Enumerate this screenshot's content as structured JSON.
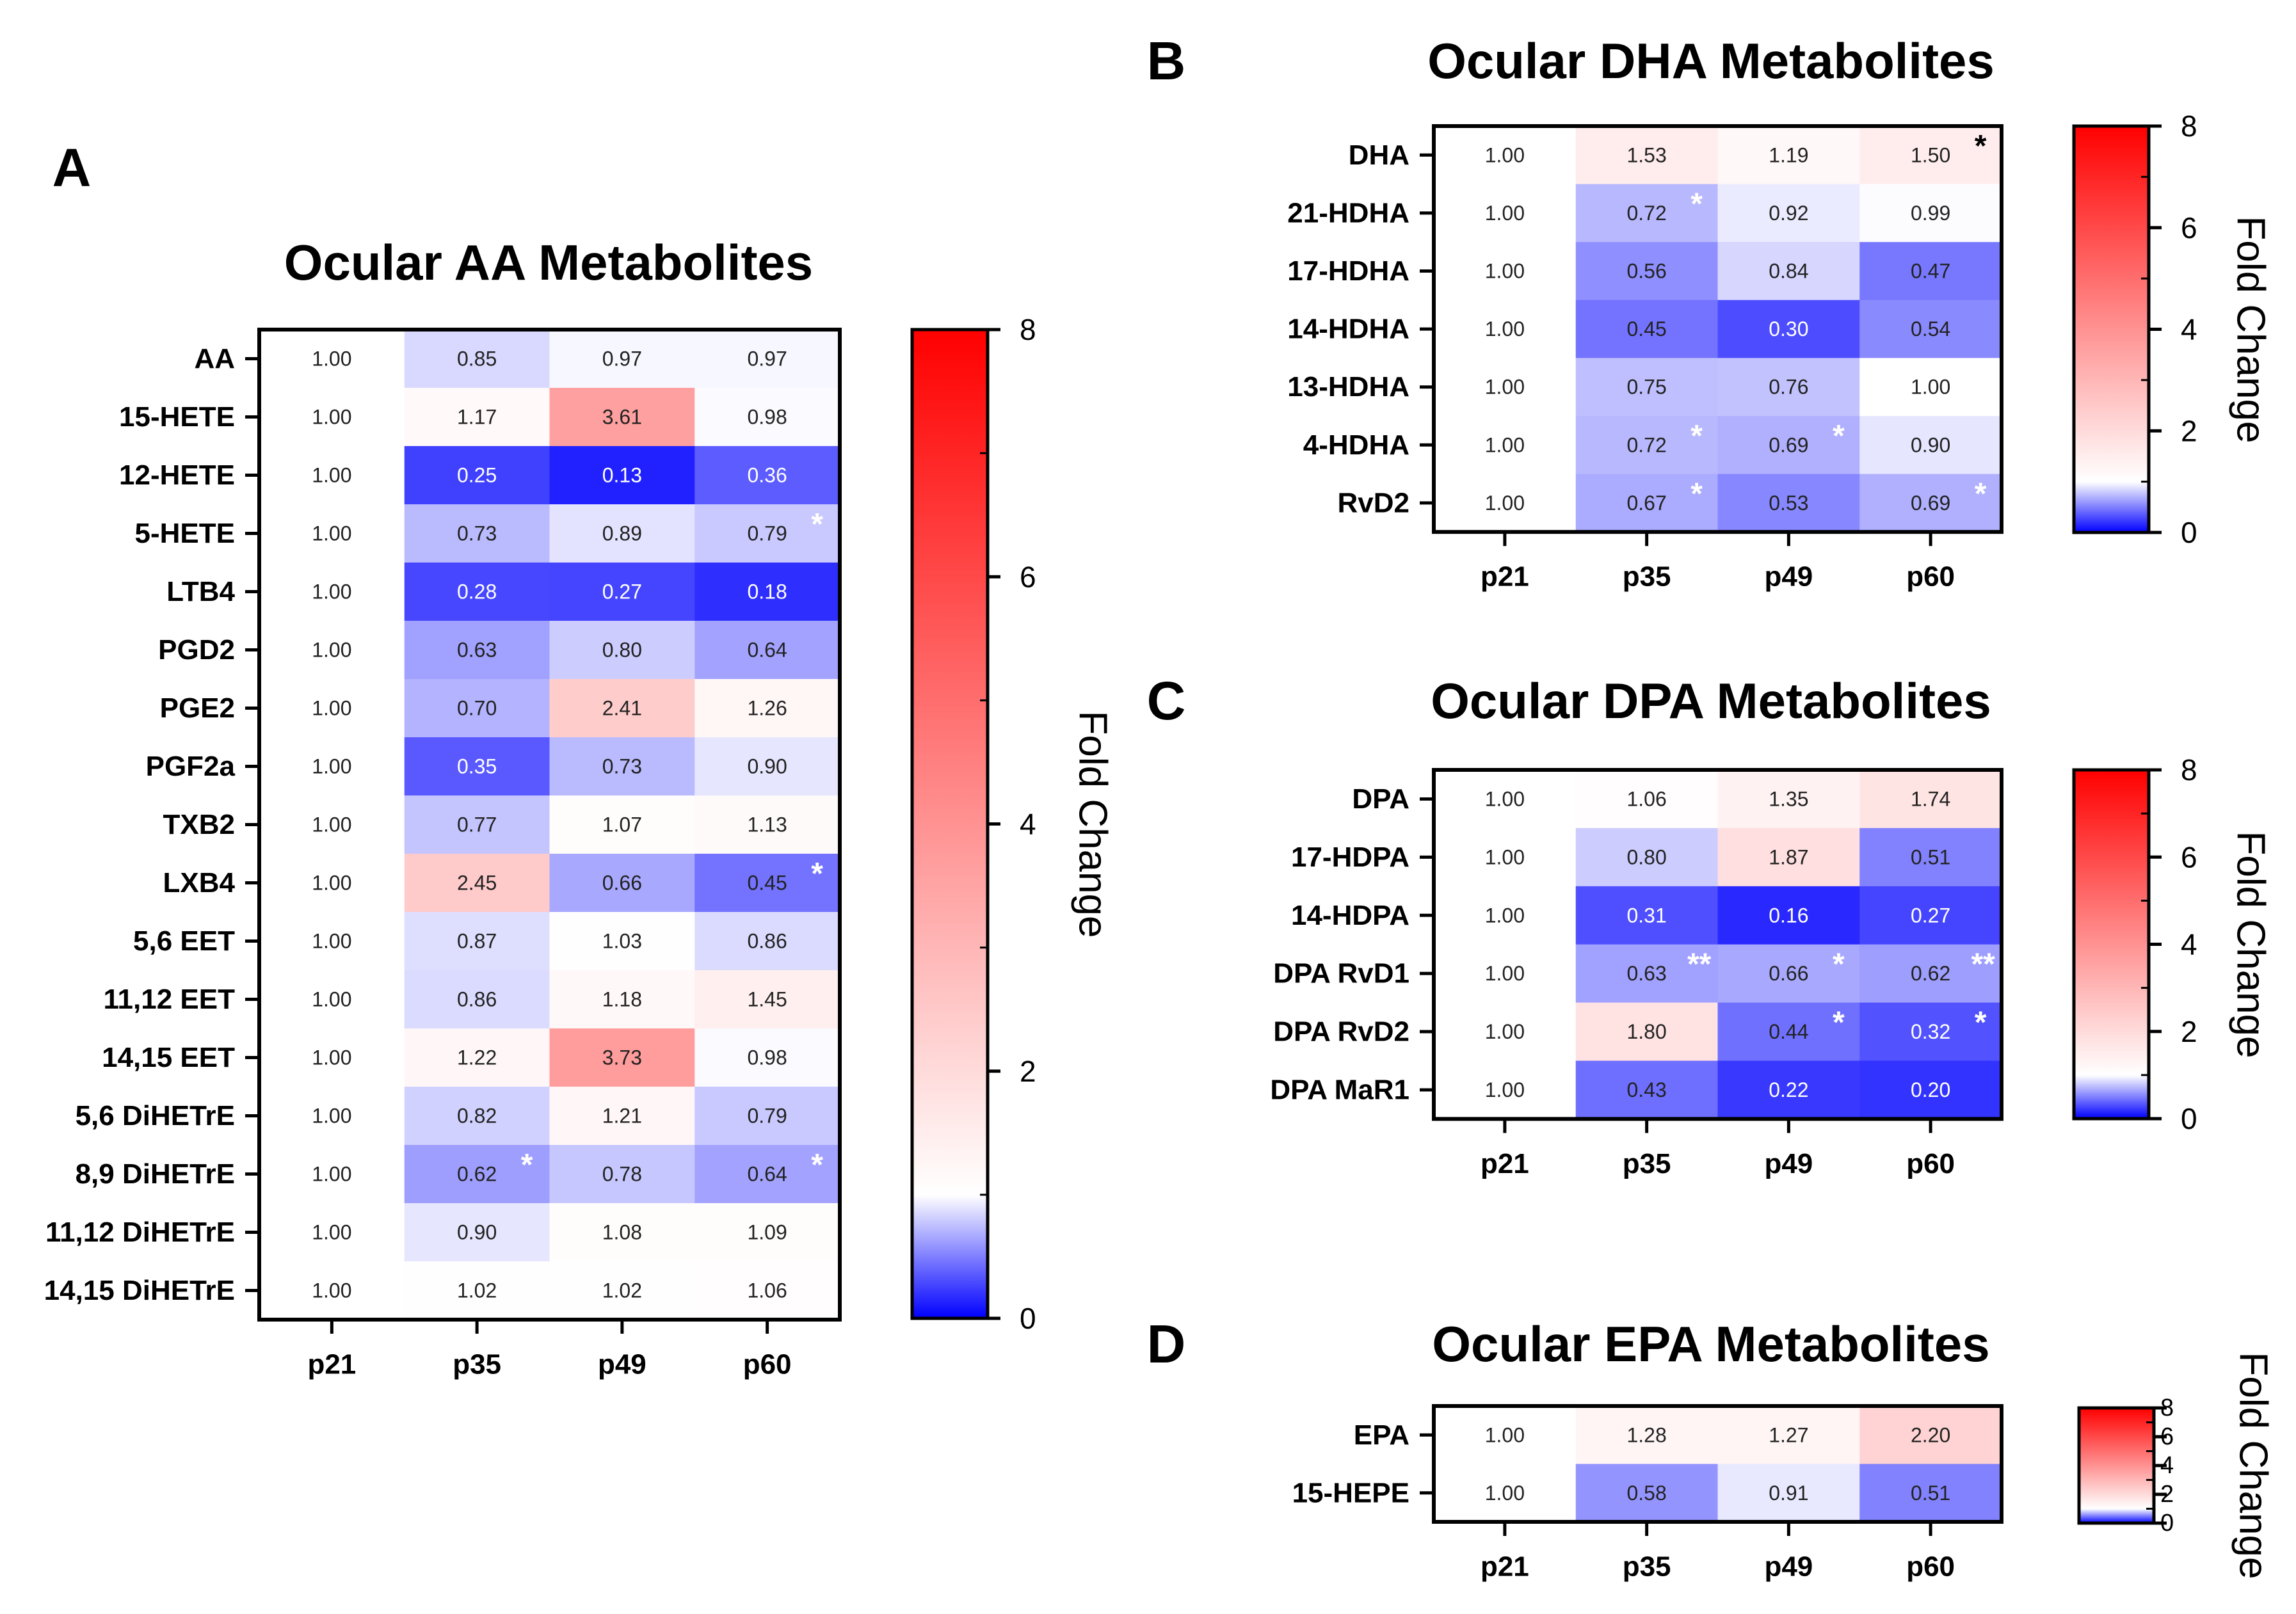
{
  "colorbar_label": "Fold Change",
  "colors": {
    "low": "#0000ff",
    "mid": "#ffffff",
    "high": "#ff0000"
  },
  "chart_data": [
    {
      "id": "A",
      "type": "heatmap",
      "panel_letter": "A",
      "title": "Ocular AA Metabolites",
      "columns": [
        "p21",
        "p35",
        "p49",
        "p60"
      ],
      "rows": [
        {
          "label": "AA",
          "values": [
            "1.00",
            "0.85",
            "0.97",
            "0.97"
          ],
          "stars": [
            "",
            "",
            "",
            ""
          ]
        },
        {
          "label": "15-HETE",
          "values": [
            "1.00",
            "1.17",
            "3.61",
            "0.98"
          ],
          "stars": [
            "",
            "",
            "",
            ""
          ]
        },
        {
          "label": "12-HETE",
          "values": [
            "1.00",
            "0.25",
            "0.13",
            "0.36"
          ],
          "stars": [
            "",
            "",
            "",
            ""
          ]
        },
        {
          "label": "5-HETE",
          "values": [
            "1.00",
            "0.73",
            "0.89",
            "0.79"
          ],
          "stars": [
            "",
            "",
            "",
            "*"
          ]
        },
        {
          "label": "LTB4",
          "values": [
            "1.00",
            "0.28",
            "0.27",
            "0.18"
          ],
          "stars": [
            "",
            "",
            "",
            ""
          ]
        },
        {
          "label": "PGD2",
          "values": [
            "1.00",
            "0.63",
            "0.80",
            "0.64"
          ],
          "stars": [
            "",
            "",
            "",
            ""
          ]
        },
        {
          "label": "PGE2",
          "values": [
            "1.00",
            "0.70",
            "2.41",
            "1.26"
          ],
          "stars": [
            "",
            "",
            "",
            ""
          ]
        },
        {
          "label": "PGF2a",
          "values": [
            "1.00",
            "0.35",
            "0.73",
            "0.90"
          ],
          "stars": [
            "",
            "",
            "",
            ""
          ]
        },
        {
          "label": "TXB2",
          "values": [
            "1.00",
            "0.77",
            "1.07",
            "1.13"
          ],
          "stars": [
            "",
            "",
            "",
            ""
          ]
        },
        {
          "label": "LXB4",
          "values": [
            "1.00",
            "2.45",
            "0.66",
            "0.45"
          ],
          "stars": [
            "",
            "",
            "",
            "*"
          ]
        },
        {
          "label": "5,6 EET",
          "values": [
            "1.00",
            "0.87",
            "1.03",
            "0.86"
          ],
          "stars": [
            "",
            "",
            "",
            ""
          ]
        },
        {
          "label": "11,12 EET",
          "values": [
            "1.00",
            "0.86",
            "1.18",
            "1.45"
          ],
          "stars": [
            "",
            "",
            "",
            ""
          ]
        },
        {
          "label": "14,15 EET",
          "values": [
            "1.00",
            "1.22",
            "3.73",
            "0.98"
          ],
          "stars": [
            "",
            "",
            "",
            ""
          ]
        },
        {
          "label": "5,6 DiHETrE",
          "values": [
            "1.00",
            "0.82",
            "1.21",
            "0.79"
          ],
          "stars": [
            "",
            "",
            "",
            ""
          ]
        },
        {
          "label": "8,9 DiHETrE",
          "values": [
            "1.00",
            "0.62",
            "0.78",
            "0.64"
          ],
          "stars": [
            "",
            "*",
            "",
            "*"
          ]
        },
        {
          "label": "11,12 DiHETrE",
          "values": [
            "1.00",
            "0.90",
            "1.08",
            "1.09"
          ],
          "stars": [
            "",
            "",
            "",
            ""
          ]
        },
        {
          "label": "14,15 DiHETrE",
          "values": [
            "1.00",
            "1.02",
            "1.02",
            "1.06"
          ],
          "stars": [
            "",
            "",
            "",
            ""
          ]
        }
      ],
      "colorbar": {
        "range": [
          0,
          8
        ],
        "ticks": [
          "0",
          "2",
          "4",
          "6",
          "8"
        ],
        "label": "Fold Change"
      }
    },
    {
      "id": "B",
      "type": "heatmap",
      "panel_letter": "B",
      "title": "Ocular DHA Metabolites",
      "columns": [
        "p21",
        "p35",
        "p49",
        "p60"
      ],
      "rows": [
        {
          "label": "DHA",
          "values": [
            "1.00",
            "1.53",
            "1.19",
            "1.50"
          ],
          "stars": [
            "",
            "",
            "",
            "*"
          ]
        },
        {
          "label": "21-HDHA",
          "values": [
            "1.00",
            "0.72",
            "0.92",
            "0.99"
          ],
          "stars": [
            "",
            "*",
            "",
            ""
          ]
        },
        {
          "label": "17-HDHA",
          "values": [
            "1.00",
            "0.56",
            "0.84",
            "0.47"
          ],
          "stars": [
            "",
            "",
            "",
            ""
          ]
        },
        {
          "label": "14-HDHA",
          "values": [
            "1.00",
            "0.45",
            "0.30",
            "0.54"
          ],
          "stars": [
            "",
            "",
            "",
            ""
          ]
        },
        {
          "label": "13-HDHA",
          "values": [
            "1.00",
            "0.75",
            "0.76",
            "1.00"
          ],
          "stars": [
            "",
            "",
            "",
            ""
          ]
        },
        {
          "label": "4-HDHA",
          "values": [
            "1.00",
            "0.72",
            "0.69",
            "0.90"
          ],
          "stars": [
            "",
            "*",
            "*",
            ""
          ]
        },
        {
          "label": "RvD2",
          "values": [
            "1.00",
            "0.67",
            "0.53",
            "0.69"
          ],
          "stars": [
            "",
            "*",
            "",
            "*"
          ]
        }
      ],
      "colorbar": {
        "range": [
          0,
          8
        ],
        "ticks": [
          "0",
          "2",
          "4",
          "6",
          "8"
        ],
        "label": "Fold Change"
      }
    },
    {
      "id": "C",
      "type": "heatmap",
      "panel_letter": "C",
      "title": "Ocular DPA Metabolites",
      "columns": [
        "p21",
        "p35",
        "p49",
        "p60"
      ],
      "rows": [
        {
          "label": "DPA",
          "values": [
            "1.00",
            "1.06",
            "1.35",
            "1.74"
          ],
          "stars": [
            "",
            "",
            "",
            ""
          ]
        },
        {
          "label": "17-HDPA",
          "values": [
            "1.00",
            "0.80",
            "1.87",
            "0.51"
          ],
          "stars": [
            "",
            "",
            "",
            ""
          ]
        },
        {
          "label": "14-HDPA",
          "values": [
            "1.00",
            "0.31",
            "0.16",
            "0.27"
          ],
          "stars": [
            "",
            "",
            "",
            ""
          ]
        },
        {
          "label": "DPA RvD1",
          "values": [
            "1.00",
            "0.63",
            "0.66",
            "0.62"
          ],
          "stars": [
            "",
            "**",
            "*",
            "**"
          ]
        },
        {
          "label": "DPA RvD2",
          "values": [
            "1.00",
            "1.80",
            "0.44",
            "0.32"
          ],
          "stars": [
            "",
            "",
            "*",
            "*"
          ]
        },
        {
          "label": "DPA MaR1",
          "values": [
            "1.00",
            "0.43",
            "0.22",
            "0.20"
          ],
          "stars": [
            "",
            "",
            "",
            ""
          ]
        }
      ],
      "colorbar": {
        "range": [
          0,
          8
        ],
        "ticks": [
          "0",
          "2",
          "4",
          "6",
          "8"
        ],
        "label": "Fold Change"
      }
    },
    {
      "id": "D",
      "type": "heatmap",
      "panel_letter": "D",
      "title": "Ocular EPA Metabolites",
      "columns": [
        "p21",
        "p35",
        "p49",
        "p60"
      ],
      "rows": [
        {
          "label": "EPA",
          "values": [
            "1.00",
            "1.28",
            "1.27",
            "2.20"
          ],
          "stars": [
            "",
            "",
            "",
            ""
          ]
        },
        {
          "label": "15-HEPE",
          "values": [
            "1.00",
            "0.58",
            "0.91",
            "0.51"
          ],
          "stars": [
            "",
            "",
            "",
            ""
          ]
        }
      ],
      "colorbar": {
        "range": [
          0,
          8
        ],
        "ticks": [
          "0",
          "2",
          "4",
          "6",
          "8"
        ],
        "label": "Fold Change"
      }
    }
  ]
}
